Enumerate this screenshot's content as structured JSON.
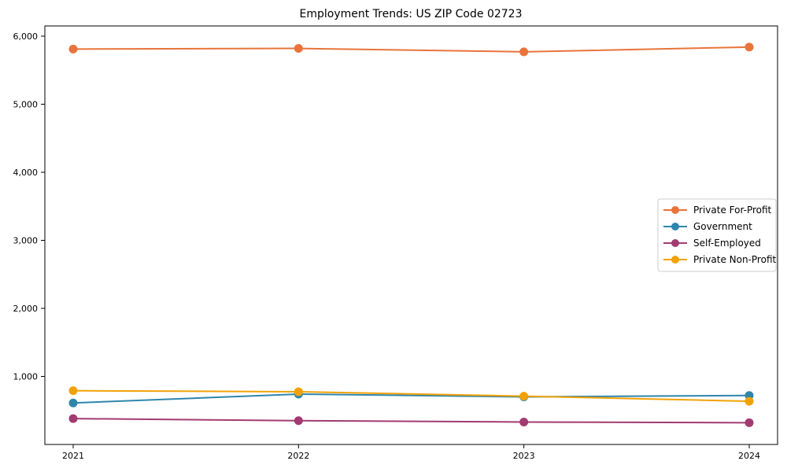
{
  "chart_data": {
    "type": "line",
    "title": "Employment Trends: US ZIP Code 02723",
    "x": [
      2021,
      2022,
      2023,
      2024
    ],
    "xtick_labels": [
      "2021",
      "2022",
      "2023",
      "2024"
    ],
    "yticks": [
      1000,
      2000,
      3000,
      4000,
      5000,
      6000
    ],
    "ytick_labels": [
      "1,000",
      "2,000",
      "3,000",
      "4,000",
      "5,000",
      "6,000"
    ],
    "ylim": [
      0,
      6150
    ],
    "grid": false,
    "marker": "circle",
    "legend_position": "center-right",
    "series": [
      {
        "name": "Private For-Profit",
        "color": "#E8743B",
        "values": [
          5810,
          5820,
          5770,
          5840
        ]
      },
      {
        "name": "Government",
        "color": "#2E86AB",
        "values": [
          610,
          740,
          700,
          720
        ]
      },
      {
        "name": "Self-Employed",
        "color": "#A23B72",
        "values": [
          380,
          350,
          330,
          320
        ]
      },
      {
        "name": "Private Non-Profit",
        "color": "#F1A208",
        "values": [
          790,
          775,
          710,
          635
        ]
      }
    ],
    "axis_color": "#000000",
    "legend_border_color": "#cccccc",
    "background_color": "#ffffff"
  }
}
